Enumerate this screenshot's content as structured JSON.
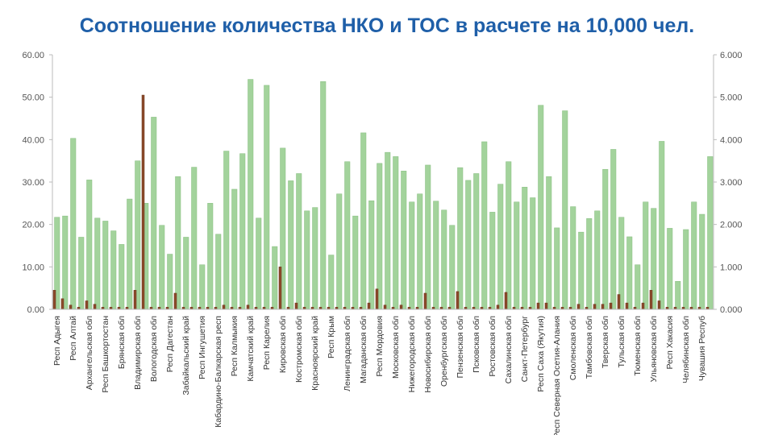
{
  "chart_data": {
    "type": "bar",
    "title": "Соотношение количества НКО и ТОС в расчете на 10,000 чел.",
    "categories": [
      "Респ Адыгея",
      null,
      "Респ Алтай",
      null,
      "Архангельская обл",
      null,
      "Респ Башкортостан",
      null,
      "Брянская обл",
      null,
      "Владимирская обл",
      null,
      "Вологодская обл",
      null,
      "Респ Дагестан",
      null,
      "Забайкальский край",
      null,
      "Респ Ингушетия",
      null,
      "Кабардино-Балкарская респ",
      null,
      "Респ Калмыкия",
      null,
      "Камчатский край",
      null,
      "Респ Карелия",
      null,
      "Кировская обл",
      null,
      "Костромская обл",
      null,
      "Красноярский край",
      null,
      "Респ Крым",
      null,
      "Ленинградская обл",
      null,
      "Магаданская обл",
      null,
      "Респ Мордовия",
      null,
      "Московская обл",
      null,
      "Нижегородская обл",
      null,
      "Новосибирская обл",
      null,
      "Оренбургская обл",
      null,
      "Пензенская обл",
      null,
      "Псковская обл",
      null,
      "Ростовская обл",
      null,
      "Сахалинская обл",
      null,
      "Санкт-Петербург",
      null,
      "Респ Саха (Якутия)",
      null,
      "Респ Северная Осетия-Алания",
      null,
      "Смоленская обл",
      null,
      "Тамбовская обл",
      null,
      "Тверская обл",
      null,
      "Тульская обл",
      null,
      "Тюменская обл",
      null,
      "Ульяновская обл",
      null,
      "Респ Хакасия",
      null,
      "Челябинская обл",
      null,
      "Чувашия Респуб",
      null
    ],
    "series": [
      {
        "color": "#a3d39c",
        "values": [
          21.7,
          22,
          40.3,
          17,
          30.5,
          21.5,
          20.8,
          18.5,
          15.3,
          26,
          35,
          25,
          45.3,
          19.8,
          13,
          31.3,
          17,
          33.5,
          10.5,
          25,
          17.7,
          37.3,
          28.3,
          36.7,
          54.2,
          21.5,
          52.8,
          14.8,
          38,
          30.3,
          32,
          23.2,
          24,
          53.7,
          12.8,
          27.2,
          34.8,
          22,
          41.6,
          25.6,
          34.4,
          37,
          36,
          32.6,
          25.3,
          27.2,
          34,
          25.5,
          23.4,
          19.8,
          33.4,
          30.4,
          32,
          39.5,
          22.9,
          29.5,
          34.8,
          25.3,
          28.8,
          26.3,
          48.1,
          31.3,
          19.2,
          46.8,
          24.2,
          18.2,
          21.4,
          23.2,
          33,
          37.7,
          21.7,
          17.1,
          10.5,
          25.3,
          23.8,
          39.6,
          19.1,
          6.6,
          18.8,
          25.3,
          22.4,
          36
        ]
      },
      {
        "color": "#8b4a2b",
        "axis": "y2",
        "values": [
          0.45,
          0.25,
          0.1,
          0.05,
          0.2,
          0.12,
          0.05,
          0.05,
          0.05,
          0.05,
          0.45,
          5.05,
          0.05,
          0.05,
          0.05,
          0.38,
          0.05,
          0.05,
          0.05,
          0.05,
          0.05,
          0.1,
          0.05,
          0.05,
          0.1,
          0.05,
          0.05,
          0.05,
          1.0,
          0.05,
          0.15,
          0.05,
          0.05,
          0.05,
          0.05,
          0.05,
          0.05,
          0.05,
          0.05,
          0.15,
          0.48,
          0.1,
          0.05,
          0.1,
          0.05,
          0.05,
          0.38,
          0.05,
          0.05,
          0.05,
          0.42,
          0.05,
          0.05,
          0.05,
          0.05,
          0.1,
          0.4,
          0.05,
          0.05,
          0.05,
          0.15,
          0.15,
          0.05,
          0.05,
          0.05,
          0.12,
          0.05,
          0.12,
          0.12,
          0.15,
          0.35,
          0.15,
          0.05,
          0.15,
          0.45,
          0.2,
          0.05,
          0.05,
          0.05,
          0.05,
          0.05,
          0.05
        ]
      }
    ],
    "ylim": [
      0,
      60
    ],
    "yticks": [
      {
        "value": 0,
        "label": "0.00"
      },
      {
        "value": 10,
        "label": "10.00"
      },
      {
        "value": 20,
        "label": "20.00"
      },
      {
        "value": 30,
        "label": "30.00"
      },
      {
        "value": 40,
        "label": "40.00"
      },
      {
        "value": 50,
        "label": "50.00"
      },
      {
        "value": 60,
        "label": "60.00"
      }
    ],
    "y2lim": [
      0,
      6
    ],
    "y2ticks": [
      {
        "value": 0,
        "label": "0.000"
      },
      {
        "value": 1,
        "label": "1.000"
      },
      {
        "value": 2,
        "label": "2.000"
      },
      {
        "value": 3,
        "label": "3.000"
      },
      {
        "value": 4,
        "label": "4.000"
      },
      {
        "value": 5,
        "label": "5.000"
      },
      {
        "value": 6,
        "label": "6.000"
      }
    ]
  }
}
